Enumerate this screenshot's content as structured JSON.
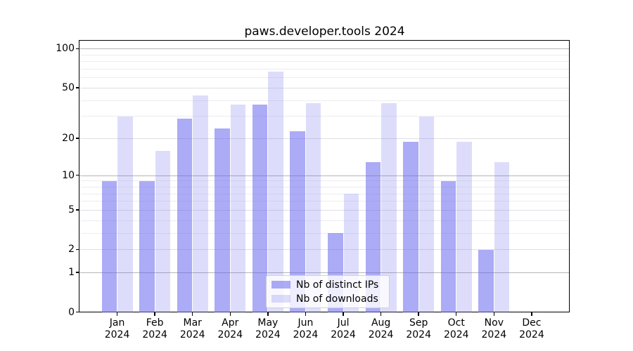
{
  "figure": {
    "title": "paws.developer.tools 2024"
  },
  "chart_data": {
    "type": "bar",
    "title": "paws.developer.tools 2024",
    "categories": [
      "Jan",
      "Feb",
      "Mar",
      "Apr",
      "May",
      "Jun",
      "Jul",
      "Aug",
      "Sep",
      "Oct",
      "Nov",
      "Dec"
    ],
    "category_year": "2024",
    "series": [
      {
        "name": "Nb of distinct IPs",
        "color": "rgba(102,102,238,0.55)",
        "values": [
          9,
          9,
          29,
          24,
          37,
          23,
          3,
          13,
          19,
          9,
          2,
          0
        ]
      },
      {
        "name": "Nb of downloads",
        "color": "rgba(102,102,238,0.22)",
        "values": [
          30,
          16,
          44,
          37,
          67,
          38,
          7,
          38,
          30,
          19,
          13,
          0
        ]
      }
    ],
    "xlabel": "",
    "ylabel": "",
    "yscale": "log1p",
    "ylim": [
      0,
      116
    ],
    "yticks": [
      0,
      1,
      2,
      5,
      10,
      20,
      50,
      100
    ],
    "major_gridlines": [
      1,
      10,
      100
    ],
    "mid_gridlines": [
      2,
      5,
      20,
      50
    ],
    "minor_gridlines": [
      3,
      4,
      6,
      7,
      8,
      9,
      30,
      40,
      60,
      70,
      80,
      90
    ],
    "grid": true,
    "legend_position": "lower center"
  }
}
